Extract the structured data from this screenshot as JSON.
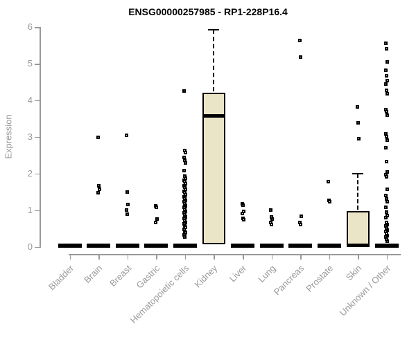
{
  "colors": {
    "box_fill": "#ebe5c7",
    "box_border": "#000000",
    "axis": "#999999",
    "muted_text": "#999999",
    "title_text": "#000000",
    "marker": "#000000"
  },
  "chart_data": {
    "type": "boxplot",
    "title": "ENSG00000257985 - RP1-228P16.4",
    "xlabel": "",
    "ylabel": "Expression",
    "ylim": [
      0,
      6
    ],
    "yticks": [
      0,
      1,
      2,
      3,
      4,
      5,
      6
    ],
    "grid": false,
    "legend": false,
    "categories": [
      {
        "label": "Bladder",
        "box": {
          "q1": 0,
          "median": 0,
          "q3": 0,
          "whisker_low": 0,
          "whisker_high": 0
        },
        "points": []
      },
      {
        "label": "Brain",
        "box": {
          "q1": 0,
          "median": 0,
          "q3": 0,
          "whisker_low": 0,
          "whisker_high": 0
        },
        "points": [
          2.99,
          1.67,
          1.56,
          1.47
        ]
      },
      {
        "label": "Breast",
        "box": {
          "q1": 0,
          "median": 0,
          "q3": 0,
          "whisker_low": 0,
          "whisker_high": 0
        },
        "points": [
          3.04,
          1.49,
          1.16,
          1.0,
          0.89
        ]
      },
      {
        "label": "Gastric",
        "box": {
          "q1": 0,
          "median": 0,
          "q3": 0,
          "whisker_low": 0,
          "whisker_high": 0
        },
        "points": [
          1.12,
          1.08,
          0.75,
          0.67
        ]
      },
      {
        "label": "Hematopoietic cells",
        "box": {
          "q1": 0,
          "median": 0,
          "q3": 0,
          "whisker_low": 0,
          "whisker_high": 0
        },
        "points": [
          4.25,
          2.62,
          2.57,
          2.43,
          2.36,
          2.28,
          2.07,
          1.92,
          1.87,
          1.82,
          1.77,
          1.72,
          1.67,
          1.62,
          1.57,
          1.52,
          1.47,
          1.42,
          1.37,
          1.32,
          1.27,
          1.22,
          1.17,
          1.12,
          1.07,
          1.02,
          0.97,
          0.92,
          0.87,
          0.82,
          0.77,
          0.72,
          0.67,
          0.62,
          0.57,
          0.52,
          0.47,
          0.42,
          0.37,
          0.32,
          0.27
        ]
      },
      {
        "label": "Kidney",
        "box": {
          "q1": 0.06,
          "median": 3.57,
          "q3": 4.21,
          "whisker_low": 0,
          "whisker_high": 5.93
        },
        "points": []
      },
      {
        "label": "Liver",
        "box": {
          "q1": 0,
          "median": 0,
          "q3": 0,
          "whisker_low": 0,
          "whisker_high": 0
        },
        "points": [
          1.17,
          1.13,
          0.97,
          0.9,
          0.78,
          0.73
        ]
      },
      {
        "label": "Lung",
        "box": {
          "q1": 0,
          "median": 0,
          "q3": 0,
          "whisker_low": 0,
          "whisker_high": 0
        },
        "points": [
          1.01,
          0.81,
          0.75,
          0.66,
          0.6
        ]
      },
      {
        "label": "Pancreas",
        "box": {
          "q1": 0,
          "median": 0,
          "q3": 0,
          "whisker_low": 0,
          "whisker_high": 0
        },
        "points": [
          5.64,
          5.18,
          0.83,
          0.66,
          0.61
        ]
      },
      {
        "label": "Prostate",
        "box": {
          "q1": 0,
          "median": 0,
          "q3": 0,
          "whisker_low": 0,
          "whisker_high": 0
        },
        "points": [
          1.77,
          1.27,
          1.22
        ]
      },
      {
        "label": "Skin",
        "box": {
          "q1": 0,
          "median": 0.03,
          "q3": 0.97,
          "whisker_low": 0,
          "whisker_high": 2.0
        },
        "points": [
          3.81,
          3.38,
          2.95
        ]
      },
      {
        "label": "Unknown / Other",
        "box": {
          "q1": 0,
          "median": 0,
          "q3": 0,
          "whisker_low": 0,
          "whisker_high": 0
        },
        "points": [
          5.56,
          5.4,
          5.04,
          4.82,
          4.66,
          4.54,
          4.44,
          4.28,
          4.18,
          3.75,
          3.68,
          3.6,
          3.08,
          3.0,
          2.92,
          2.71,
          2.32,
          2.05,
          1.97,
          1.9,
          1.57,
          1.39,
          1.31,
          1.22,
          1.07,
          0.94,
          0.86,
          0.79,
          0.66,
          0.61,
          0.56,
          0.51,
          0.46,
          0.41,
          0.36,
          0.31,
          0.26,
          0.21,
          0.15
        ]
      }
    ]
  }
}
